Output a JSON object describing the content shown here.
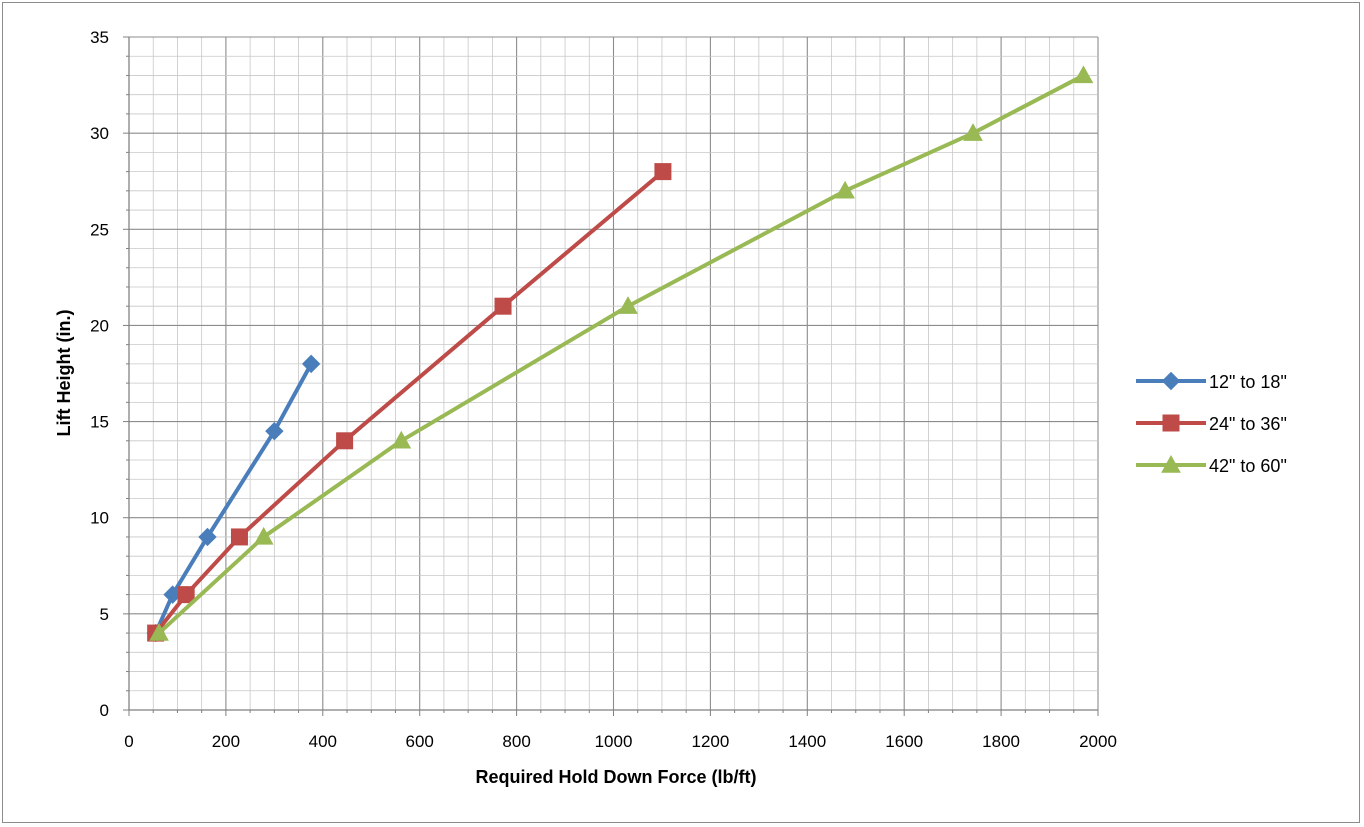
{
  "chart_data": {
    "type": "line",
    "title": "",
    "xlabel": "Required Hold Down Force (lb/ft)",
    "ylabel": "Lift Height (in.)",
    "xlim": [
      0,
      2000
    ],
    "ylim": [
      0,
      35
    ],
    "x_ticks": [
      0,
      200,
      400,
      600,
      800,
      1000,
      1200,
      1400,
      1600,
      1800,
      2000
    ],
    "y_ticks": [
      0,
      5,
      10,
      15,
      20,
      25,
      30,
      35
    ],
    "x_minor_step": 50,
    "y_minor_step": 1,
    "grid": true,
    "legend_position": "right",
    "series": [
      {
        "name": "12\" to 18\"",
        "color": "#4a7ebb",
        "marker": "diamond",
        "x": [
          55,
          90,
          162,
          300,
          376
        ],
        "y": [
          4,
          6,
          9,
          14.5,
          18
        ]
      },
      {
        "name": "24\" to 36\"",
        "color": "#be4b48",
        "marker": "square",
        "x": [
          55,
          118,
          228,
          445,
          772,
          1102
        ],
        "y": [
          4,
          6,
          9,
          14,
          21,
          28
        ]
      },
      {
        "name": "42\" to 60\"",
        "color": "#98b954",
        "marker": "triangle",
        "x": [
          62,
          278,
          562,
          1030,
          1478,
          1742,
          1970
        ],
        "y": [
          4,
          9,
          14,
          21,
          27,
          30,
          33
        ]
      }
    ]
  }
}
